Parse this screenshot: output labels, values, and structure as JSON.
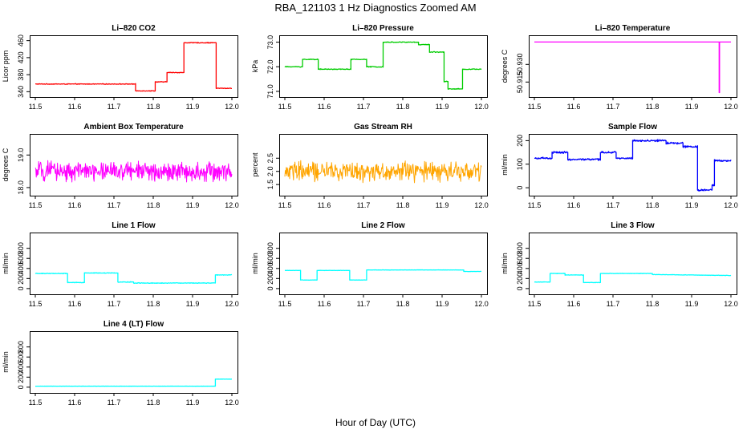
{
  "figure": {
    "title": "RBA_121103  1 Hz Diagnostics Zoomed AM",
    "xlabel": "Hour of Day (UTC)"
  },
  "chart_data": [
    {
      "type": "line",
      "title": "Li–820 CO2",
      "ylabel": "Licor ppm",
      "color": "#ff0000",
      "xlim": [
        11.5,
        12.0
      ],
      "xticks": [
        "11.5",
        "11.6",
        "11.7",
        "11.8",
        "11.9",
        "12.0"
      ],
      "ylim": [
        335,
        465
      ],
      "yticks": [
        "340",
        "380",
        "420",
        "460"
      ],
      "noise": 1,
      "x": [
        11.5,
        11.755,
        11.755,
        11.805,
        11.805,
        11.835,
        11.835,
        11.878,
        11.878,
        11.96,
        11.96,
        12.0
      ],
      "y": [
        358,
        358,
        342,
        342,
        363,
        363,
        385,
        385,
        455,
        455,
        348,
        348
      ]
    },
    {
      "type": "line",
      "title": "Li–820 Pressure",
      "ylabel": "kPa",
      "color": "#00cc00",
      "xlim": [
        11.5,
        12.0
      ],
      "xticks": [
        "11.5",
        "11.6",
        "11.7",
        "11.8",
        "11.9",
        "12.0"
      ],
      "ylim": [
        70.9,
        73.15
      ],
      "yticks": [
        "71.0",
        "72.0",
        "73.0"
      ],
      "noise": 0.02,
      "x": [
        11.5,
        11.545,
        11.545,
        11.585,
        11.585,
        11.668,
        11.668,
        11.708,
        11.708,
        11.75,
        11.75,
        11.84,
        11.84,
        11.868,
        11.868,
        11.905,
        11.905,
        11.915,
        11.915,
        11.952,
        11.952,
        12.0
      ],
      "y": [
        72.0,
        72.0,
        72.3,
        72.3,
        71.9,
        71.9,
        72.3,
        72.3,
        72.0,
        72.0,
        73.0,
        73.0,
        72.9,
        72.9,
        72.6,
        72.6,
        71.4,
        71.4,
        71.1,
        71.1,
        71.9,
        71.9
      ]
    },
    {
      "type": "line",
      "title": "Li–820 Temperature",
      "ylabel": "degrees C",
      "color": "#ff00ff",
      "xlim": [
        11.5,
        12.0
      ],
      "xticks": [
        "11.5",
        "11.6",
        "11.7",
        "11.8",
        "11.9",
        "12.0"
      ],
      "ylim": [
        50.905,
        50.952
      ],
      "yticks": [
        "50.915",
        "50.930"
      ],
      "noise": 0,
      "x": [
        11.5,
        11.97,
        11.97,
        11.971,
        11.971,
        12.0
      ],
      "y": [
        50.949,
        50.949,
        50.906,
        50.906,
        50.949,
        50.949
      ]
    },
    {
      "type": "line",
      "title": "Ambient Box Temperature",
      "ylabel": "degrees C",
      "color": "#ff00ff",
      "xlim": [
        11.5,
        12.0
      ],
      "xticks": [
        "11.5",
        "11.6",
        "11.7",
        "11.8",
        "11.9",
        "12.0"
      ],
      "ylim": [
        17.85,
        19.55
      ],
      "yticks": [
        "18.0",
        "19.0"
      ],
      "noise": 0.35,
      "x": [
        11.5,
        12.0
      ],
      "y": [
        18.5,
        18.5
      ]
    },
    {
      "type": "line",
      "title": "Gas Stream RH",
      "ylabel": "percent",
      "color": "#ffa500",
      "xlim": [
        11.5,
        12.0
      ],
      "xticks": [
        "11.5",
        "11.6",
        "11.7",
        "11.8",
        "11.9",
        "12.0"
      ],
      "ylim": [
        1.2,
        3.3
      ],
      "yticks": [
        "1.5",
        "2.0",
        "2.5"
      ],
      "noise": 0.45,
      "x": [
        11.5,
        12.0
      ],
      "y": [
        2.0,
        2.0
      ]
    },
    {
      "type": "line",
      "title": "Sample Flow",
      "ylabel": "ml/min",
      "color": "#0000ff",
      "xlim": [
        11.5,
        12.0
      ],
      "xticks": [
        "11.5",
        "11.6",
        "11.7",
        "11.8",
        "11.9",
        "12.0"
      ],
      "ylim": [
        -20,
        215
      ],
      "yticks": [
        "0",
        "100",
        "200"
      ],
      "noise": 5,
      "x": [
        11.5,
        11.545,
        11.545,
        11.585,
        11.585,
        11.668,
        11.668,
        11.708,
        11.708,
        11.75,
        11.75,
        11.835,
        11.835,
        11.878,
        11.878,
        11.915,
        11.915,
        11.952,
        11.952,
        11.958,
        11.958,
        12.0
      ],
      "y": [
        125,
        125,
        150,
        150,
        120,
        120,
        150,
        150,
        125,
        125,
        200,
        200,
        190,
        190,
        175,
        175,
        -10,
        -10,
        10,
        10,
        115,
        115
      ]
    },
    {
      "type": "line",
      "title": "Line 1 Flow",
      "ylabel": "ml/min",
      "color": "#00ffff",
      "xlim": [
        11.5,
        12.0
      ],
      "xticks": [
        "11.5",
        "11.6",
        "11.7",
        "11.8",
        "11.9",
        "12.0"
      ],
      "ylim": [
        -50,
        1050
      ],
      "yticks": [
        "0",
        "200",
        "400",
        "600",
        "800"
      ],
      "noise": 8,
      "x": [
        11.5,
        11.582,
        11.582,
        11.625,
        11.625,
        11.71,
        11.71,
        11.75,
        11.75,
        11.958,
        11.958,
        12.0
      ],
      "y": [
        300,
        300,
        120,
        120,
        310,
        310,
        130,
        130,
        110,
        110,
        270,
        270
      ]
    },
    {
      "type": "line",
      "title": "Line 2 Flow",
      "ylabel": "ml/min",
      "color": "#00ffff",
      "xlim": [
        11.5,
        12.0
      ],
      "xticks": [
        "11.5",
        "11.6",
        "11.7",
        "11.8",
        "11.9",
        "12.0"
      ],
      "ylim": [
        -50,
        1050
      ],
      "yticks": [
        "0",
        "200",
        "400",
        "600",
        "800"
      ],
      "noise": 3,
      "x": [
        11.5,
        11.54,
        11.54,
        11.582,
        11.582,
        11.665,
        11.665,
        11.708,
        11.708,
        11.955,
        11.955,
        12.0
      ],
      "y": [
        360,
        360,
        170,
        170,
        360,
        360,
        170,
        170,
        370,
        370,
        340,
        340
      ]
    },
    {
      "type": "line",
      "title": "Line 3 Flow",
      "ylabel": "ml/min",
      "color": "#00ffff",
      "xlim": [
        11.5,
        12.0
      ],
      "xticks": [
        "11.5",
        "11.6",
        "11.7",
        "11.8",
        "11.9",
        "12.0"
      ],
      "ylim": [
        -50,
        1050
      ],
      "yticks": [
        "0",
        "200",
        "400",
        "600",
        "800"
      ],
      "noise": 5,
      "x": [
        11.5,
        11.54,
        11.54,
        11.578,
        11.578,
        11.625,
        11.625,
        11.668,
        11.668,
        11.8,
        11.8,
        12.0
      ],
      "y": [
        130,
        130,
        300,
        300,
        270,
        270,
        120,
        120,
        300,
        300,
        280,
        260
      ]
    },
    {
      "type": "line",
      "title": "Line 4 (LT) Flow",
      "ylabel": "ml/min",
      "color": "#00ffff",
      "xlim": [
        11.5,
        12.0
      ],
      "xticks": [
        "11.5",
        "11.6",
        "11.7",
        "11.8",
        "11.9",
        "12.0"
      ],
      "ylim": [
        -50,
        1050
      ],
      "yticks": [
        "0",
        "200",
        "400",
        "600",
        "800"
      ],
      "noise": 2,
      "x": [
        11.5,
        11.958,
        11.958,
        12.0
      ],
      "y": [
        20,
        20,
        160,
        160
      ]
    }
  ]
}
